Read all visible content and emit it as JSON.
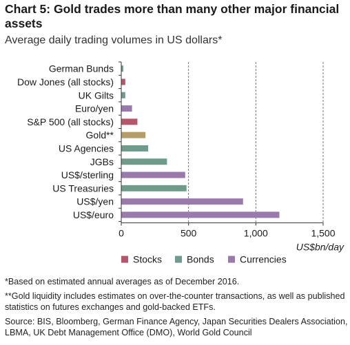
{
  "title": "Chart 5: Gold trades more than many other major financial assets",
  "subtitle": "Average daily trading volumes in US dollars*",
  "notes": {
    "note1": "*Based on estimated annual averages as of December 2016.",
    "note2": "**Gold liquidity includes estimates on over-the-counter transactions, as well as published statistics on futures exchanges and gold-backed ETFs.",
    "source": "Source: BIS, Bloomberg, German Finance Agency, Japan Securities Dealers Association, LBMA, UK Debt Management Office (DMO), World Gold Council"
  },
  "colors": {
    "Stocks": "#b5566b",
    "Bonds": "#6e9b8a",
    "Currencies": "#9a7aab",
    "Gold": "#b59d6a",
    "axis": "#333333",
    "grid": "#666666"
  },
  "chart_data": {
    "type": "bar",
    "orientation": "horizontal",
    "categories": [
      "German Bunds",
      "Dow Jones (all stocks)",
      "UK Gilts",
      "Euro/yen",
      "S&P 500 (all stocks)",
      "Gold**",
      "US Agencies",
      "JGBs",
      "US$/sterling",
      "US Treasuries",
      "US$/yen",
      "US$/euro"
    ],
    "values": [
      15,
      30,
      30,
      80,
      120,
      180,
      200,
      340,
      475,
      485,
      905,
      1175
    ],
    "groups": [
      "Bonds",
      "Stocks",
      "Bonds",
      "Currencies",
      "Stocks",
      "Gold",
      "Bonds",
      "Bonds",
      "Currencies",
      "Bonds",
      "Currencies",
      "Currencies"
    ],
    "xlim": [
      0,
      1500
    ],
    "xticks": [
      0,
      500,
      1000,
      1500
    ],
    "xtick_labels": [
      "0",
      "500",
      "1,000",
      "1,500"
    ],
    "xlabel": "US$bn/day",
    "grid": "vertical dashed",
    "legend": [
      "Stocks",
      "Bonds",
      "Currencies"
    ],
    "legend_position": "bottom"
  }
}
